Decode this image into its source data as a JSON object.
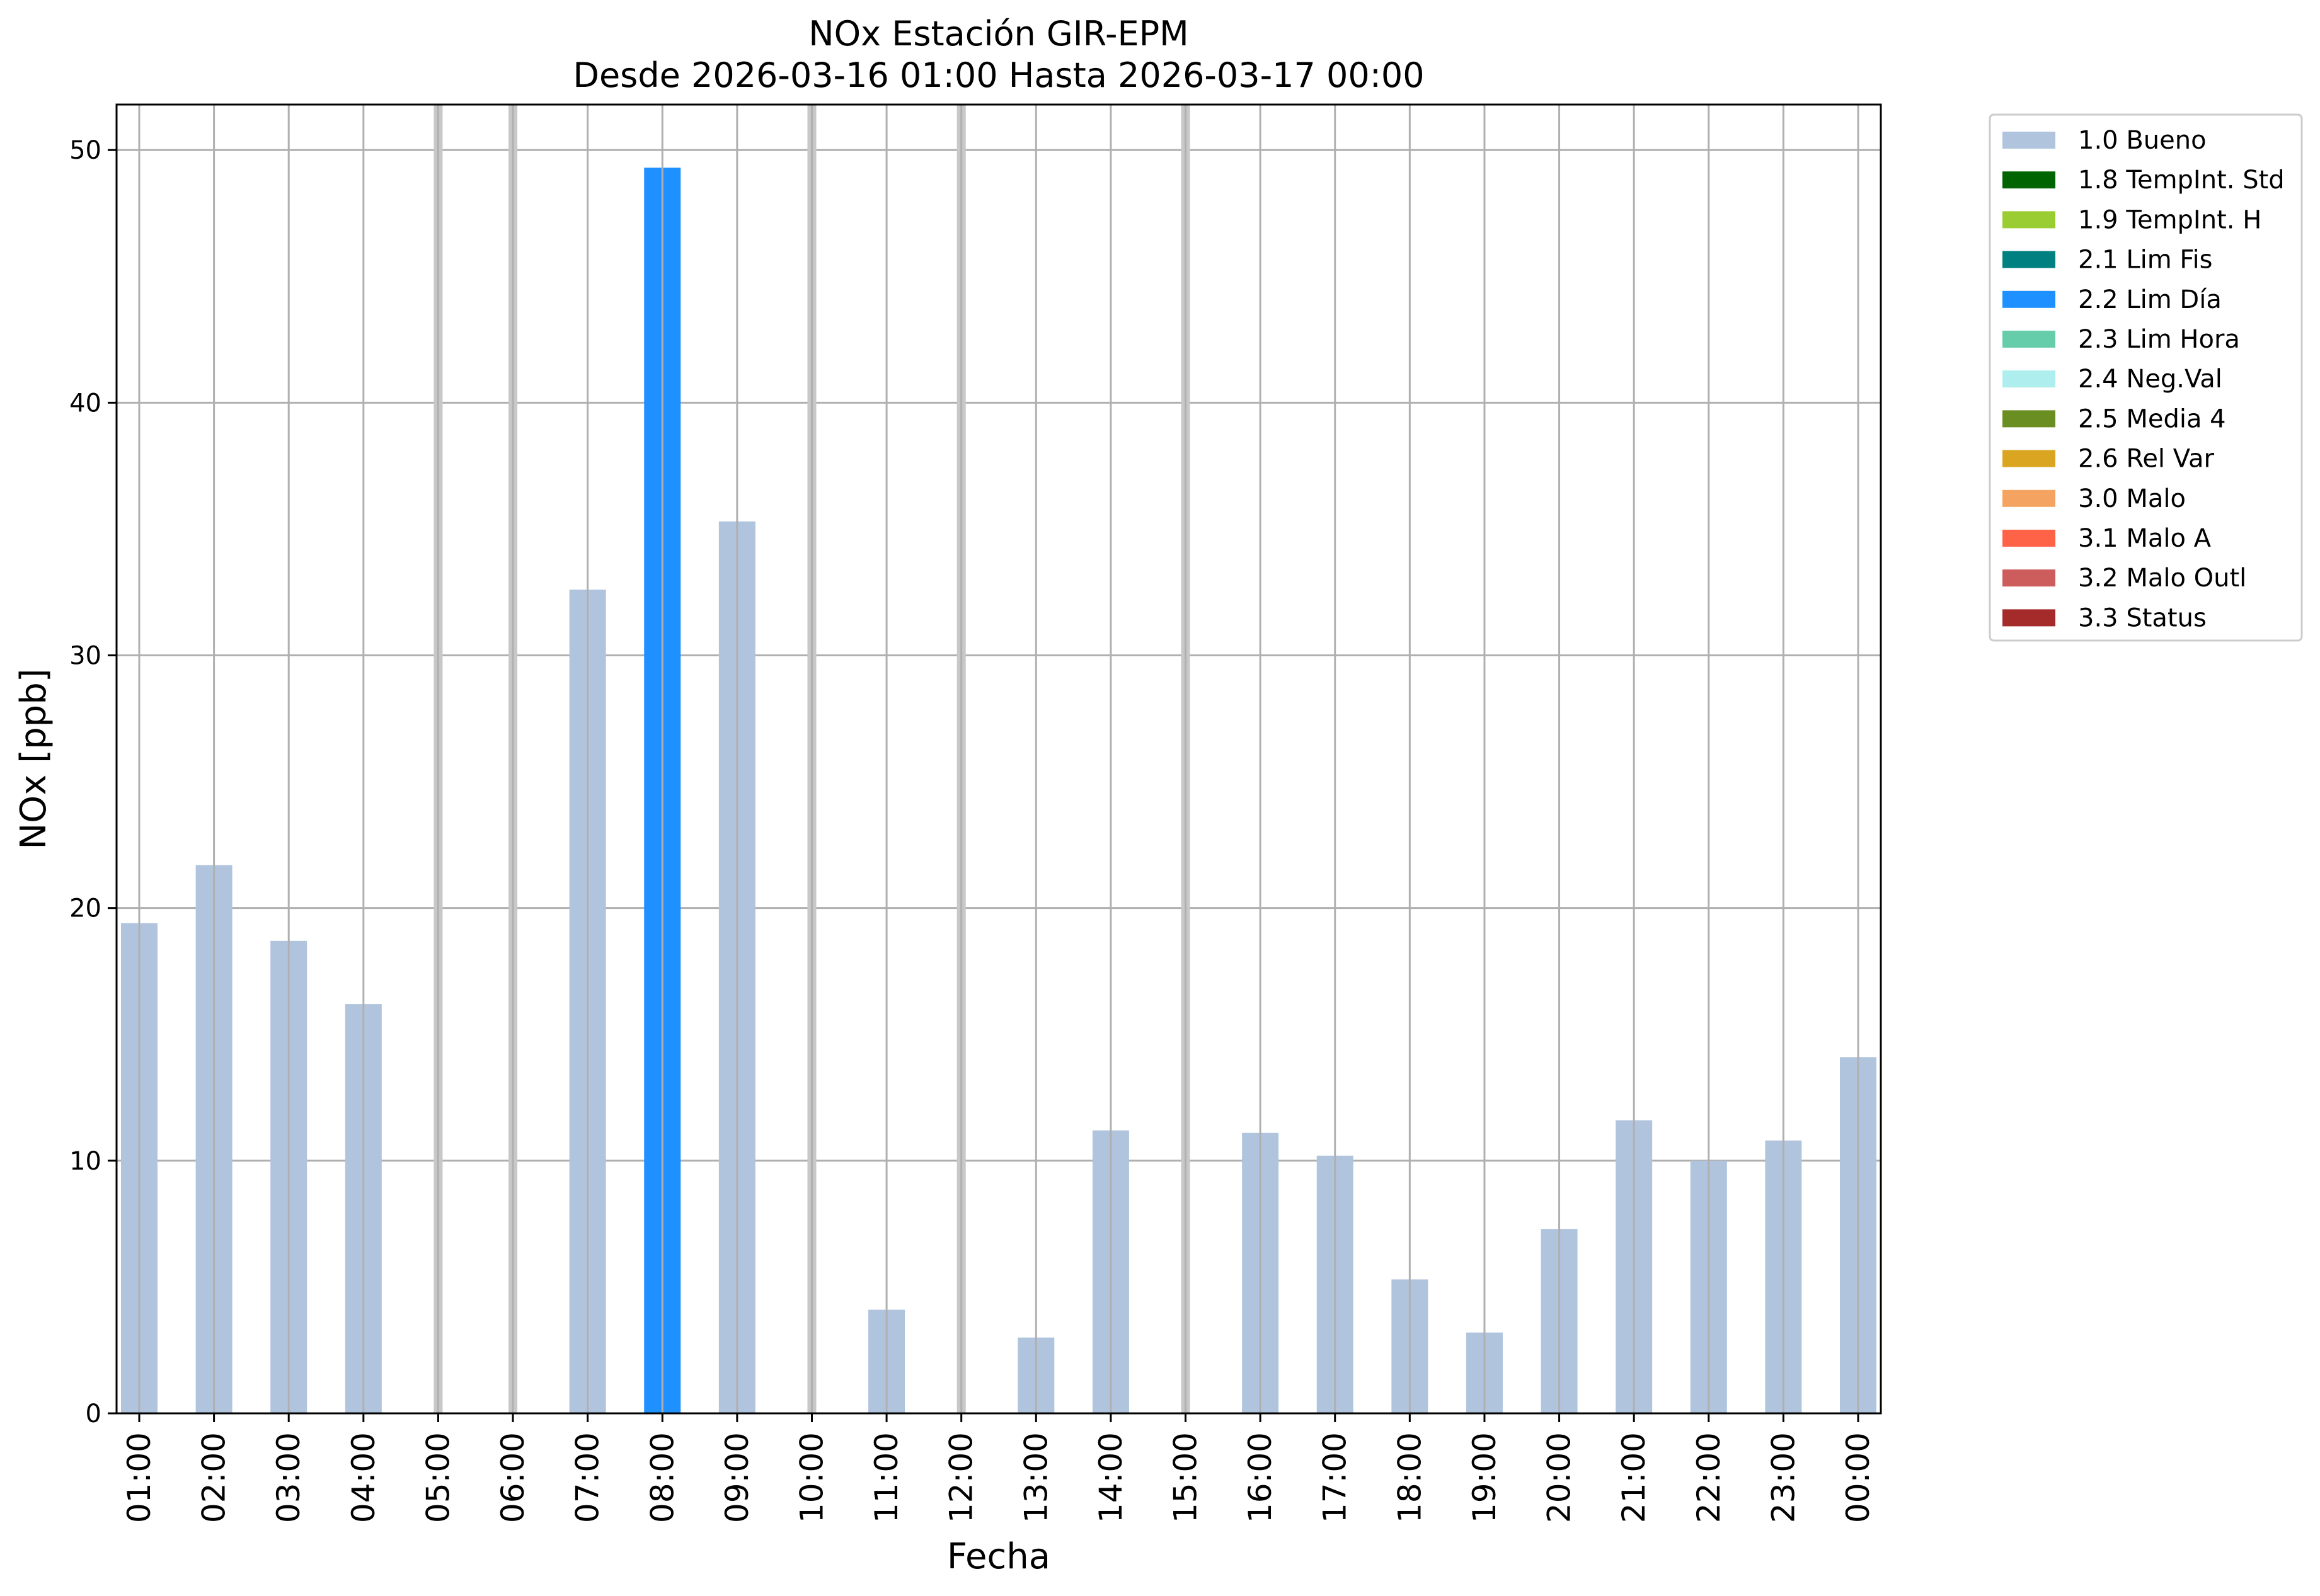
{
  "chart_data": {
    "type": "bar",
    "title_line1": "NOx Estación GIR-EPM",
    "title_line2": "Desde 2026-03-16 01:00 Hasta 2026-03-17 00:00",
    "xlabel": "Fecha",
    "ylabel": "NOx [ppb]",
    "ylim": [
      0,
      51.8
    ],
    "yticks": [
      0,
      10,
      20,
      30,
      40,
      50
    ],
    "grid": true,
    "legend_position": "outside-right",
    "categories": [
      "01:00",
      "02:00",
      "03:00",
      "04:00",
      "05:00",
      "06:00",
      "07:00",
      "08:00",
      "09:00",
      "10:00",
      "11:00",
      "12:00",
      "13:00",
      "14:00",
      "15:00",
      "16:00",
      "17:00",
      "18:00",
      "19:00",
      "20:00",
      "21:00",
      "22:00",
      "23:00",
      "00:00"
    ],
    "values": [
      19.4,
      21.7,
      18.7,
      16.2,
      null,
      null,
      32.6,
      49.3,
      35.3,
      null,
      4.1,
      null,
      3.0,
      11.2,
      null,
      11.1,
      10.2,
      5.3,
      3.2,
      7.3,
      11.6,
      10.0,
      10.8,
      14.1
    ],
    "flags": [
      "1.0 Bueno",
      "1.0 Bueno",
      "1.0 Bueno",
      "1.0 Bueno",
      null,
      null,
      "1.0 Bueno",
      "2.2 Lim Día",
      "1.0 Bueno",
      null,
      "1.0 Bueno",
      null,
      "1.0 Bueno",
      "1.0 Bueno",
      null,
      "1.0 Bueno",
      "1.0 Bueno",
      "1.0 Bueno",
      "1.0 Bueno",
      "1.0 Bueno",
      "1.0 Bueno",
      "1.0 Bueno",
      "1.0 Bueno",
      "1.0 Bueno"
    ],
    "missing_marker_color": "#c8c8c8",
    "legend": [
      {
        "label": "1.0 Bueno",
        "color": "#b0c4de"
      },
      {
        "label": "1.8 TempInt. Std",
        "color": "#006400"
      },
      {
        "label": "1.9 TempInt. H",
        "color": "#9acd32"
      },
      {
        "label": "2.1 Lim Fis",
        "color": "#008080"
      },
      {
        "label": "2.2 Lim Día",
        "color": "#1e90ff"
      },
      {
        "label": "2.3 Lim Hora",
        "color": "#66cdaa"
      },
      {
        "label": "2.4 Neg.Val",
        "color": "#afeeee"
      },
      {
        "label": "2.5 Media 4",
        "color": "#6b8e23"
      },
      {
        "label": "2.6 Rel Var",
        "color": "#daa520"
      },
      {
        "label": "3.0 Malo",
        "color": "#f4a460"
      },
      {
        "label": "3.1 Malo A",
        "color": "#ff6347"
      },
      {
        "label": "3.2 Malo Outl",
        "color": "#cd5c5c"
      },
      {
        "label": "3.3 Status",
        "color": "#a52a2a"
      }
    ]
  }
}
